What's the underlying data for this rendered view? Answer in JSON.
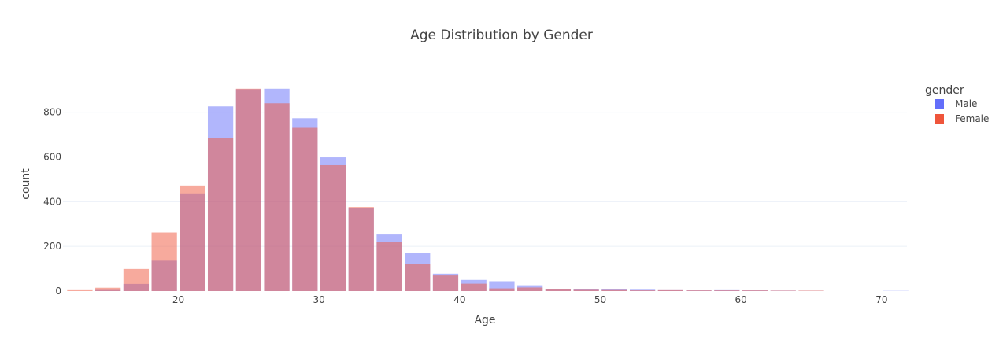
{
  "chart_data": {
    "type": "bar",
    "title": "Age Distribution by Gender",
    "xlabel": "Age",
    "ylabel": "count",
    "xlim": [
      11.8,
      71.8
    ],
    "ylim": [
      0,
      950
    ],
    "x_ticks": [
      20,
      30,
      40,
      50,
      60,
      70
    ],
    "y_ticks": [
      0,
      200,
      400,
      600,
      800
    ],
    "grid": true,
    "legend": {
      "title": "gender",
      "position": "top-right"
    },
    "bin_width": 2,
    "bin_starts": [
      12,
      14,
      16,
      18,
      20,
      22,
      24,
      26,
      28,
      30,
      32,
      34,
      36,
      38,
      40,
      42,
      44,
      46,
      48,
      50,
      52,
      54,
      56,
      58,
      60,
      62,
      64,
      66,
      68,
      70
    ],
    "series": [
      {
        "name": "Male",
        "color": "#636efa",
        "values": [
          0,
          5,
          32,
          136,
          437,
          826,
          903,
          905,
          773,
          598,
          373,
          253,
          170,
          78,
          50,
          44,
          26,
          10,
          10,
          10,
          6,
          4,
          3,
          4,
          3,
          2,
          1,
          0,
          0,
          1
        ]
      },
      {
        "name": "Female",
        "color": "#ef553b",
        "values": [
          4,
          15,
          99,
          262,
          472,
          686,
          905,
          840,
          730,
          563,
          376,
          220,
          120,
          70,
          33,
          12,
          16,
          7,
          6,
          5,
          3,
          4,
          3,
          3,
          3,
          2,
          2,
          0,
          0,
          0
        ]
      }
    ]
  }
}
